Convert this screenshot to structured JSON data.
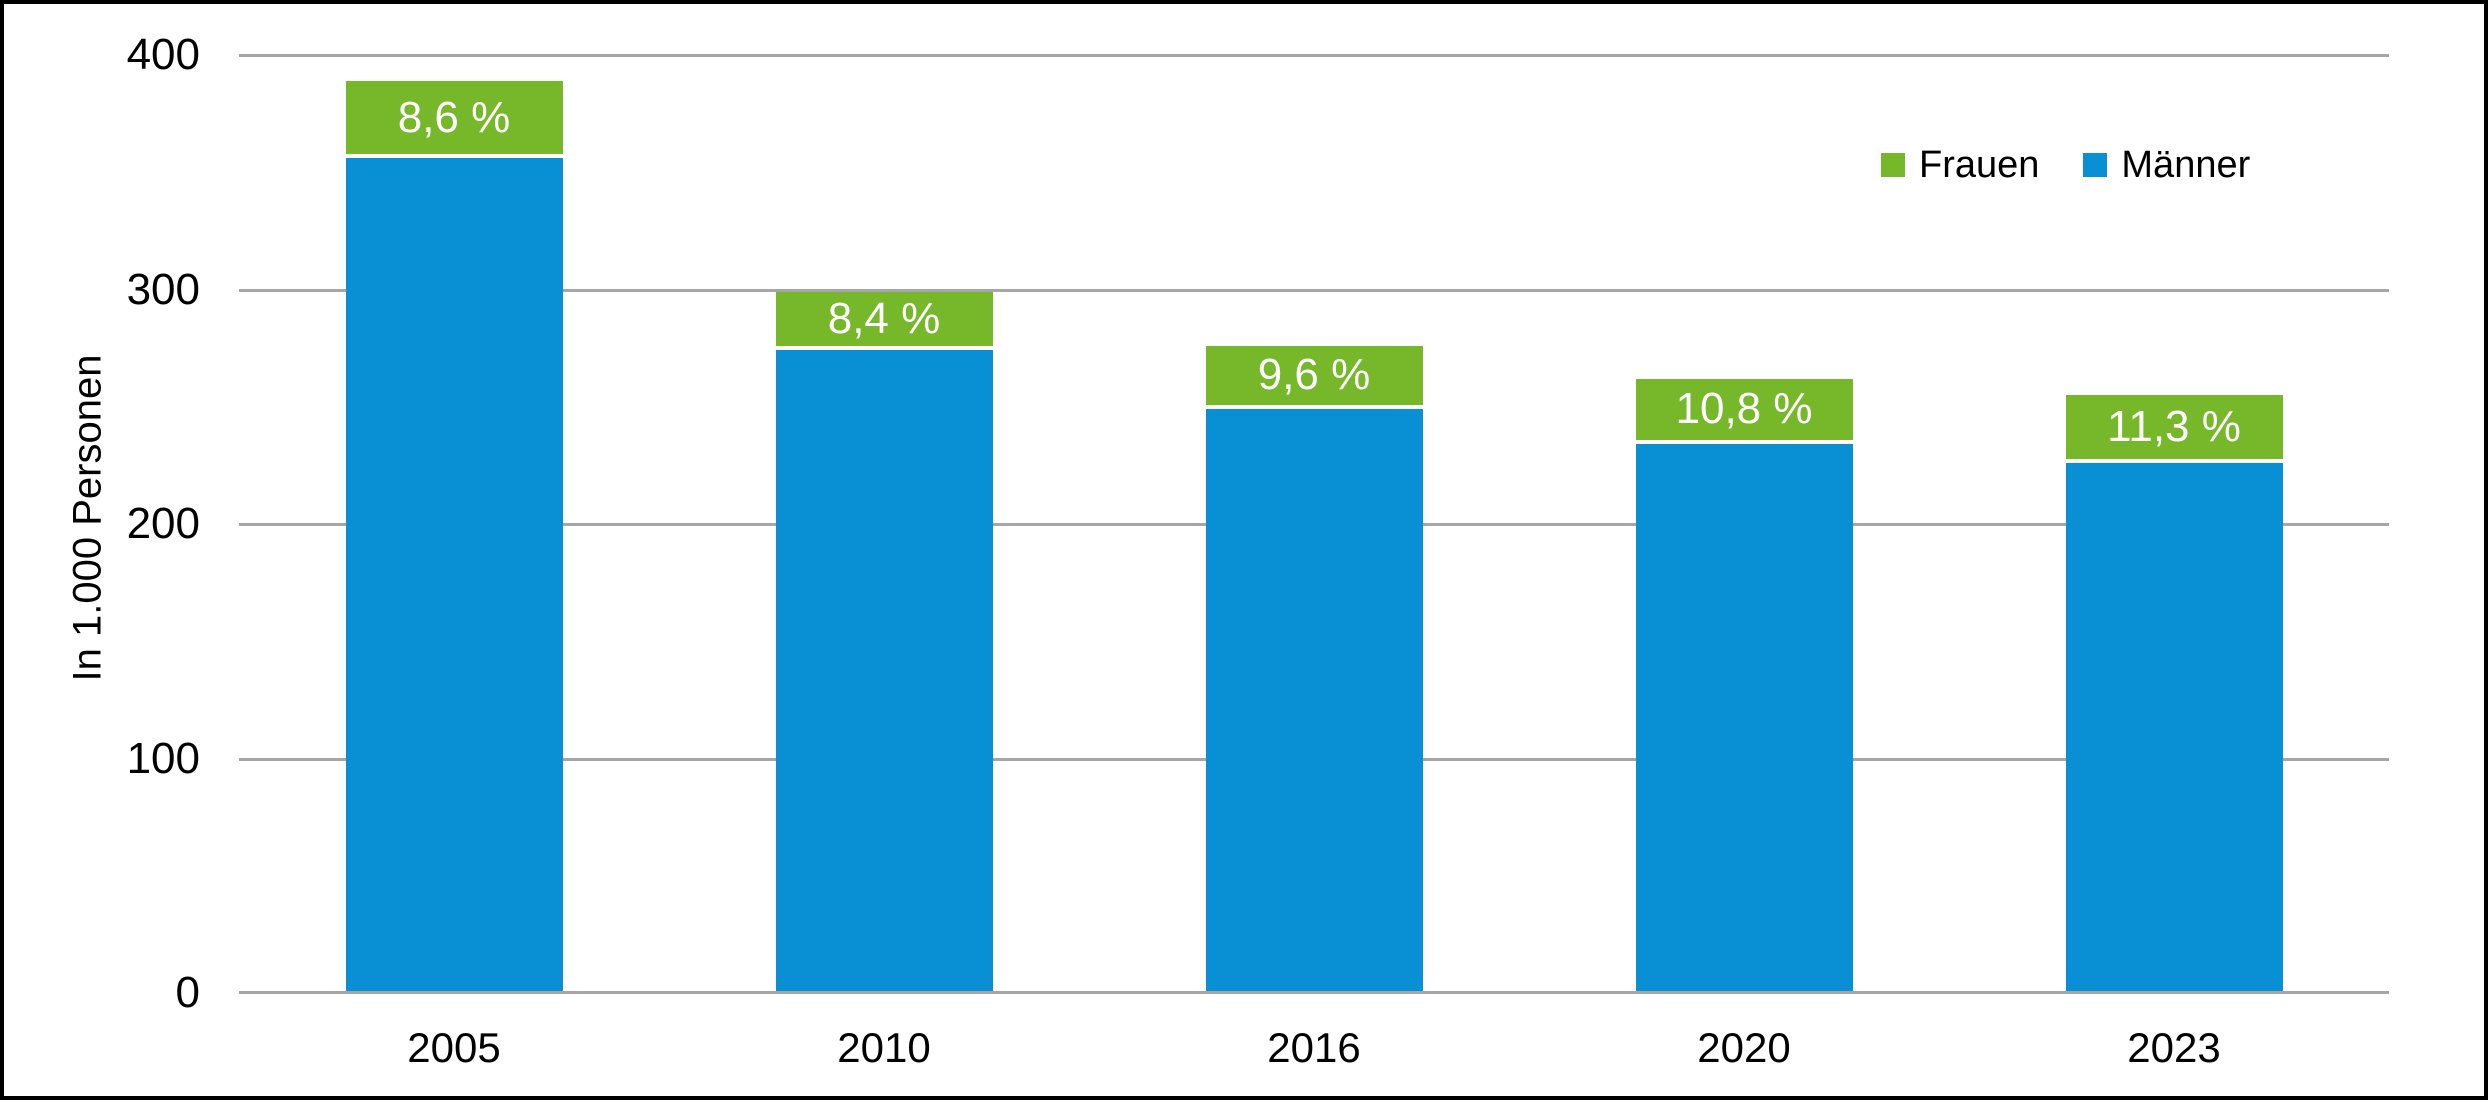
{
  "chart_data": {
    "type": "bar",
    "stacked": true,
    "title": "",
    "categories": [
      "2005",
      "2010",
      "2016",
      "2020",
      "2023"
    ],
    "series": [
      {
        "name": "Männer",
        "color": "#0990d4",
        "values": [
          356,
          274,
          249,
          234,
          226
        ]
      },
      {
        "name": "Frauen",
        "color": "#76b82a",
        "values": [
          33,
          25,
          27,
          28,
          29
        ],
        "segment_labels": [
          "8,6 %",
          "8,4 %",
          "9,6 %",
          "10,8 %",
          "11,3 %"
        ],
        "segment_label_color": "#ffffff"
      }
    ],
    "totals": [
      389,
      299,
      276,
      262,
      255
    ],
    "xlabel": "",
    "ylabel": "In 1.000 Personen",
    "ylim": [
      0,
      400
    ],
    "yticks": [
      0,
      100,
      200,
      300,
      400
    ],
    "grid": true,
    "gridline_color": "#a6a6a6",
    "legend": {
      "position": "top-right",
      "entries": [
        {
          "label": "Frauen",
          "color": "#76b82a"
        },
        {
          "label": "Männer",
          "color": "#0990d4"
        }
      ]
    }
  },
  "frame": {
    "background": "#ffffff",
    "border_color": "#000000"
  }
}
